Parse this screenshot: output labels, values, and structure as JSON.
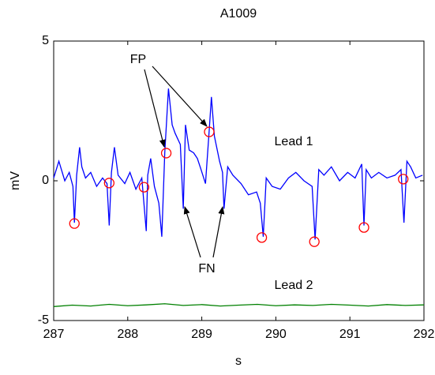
{
  "chart_data": {
    "type": "line",
    "title": "A1009",
    "x_label": "s",
    "y_label": "mV",
    "xlim": [
      287,
      292
    ],
    "xticks": [
      287,
      288,
      289,
      290,
      291,
      292
    ],
    "ylim": [
      -5,
      5
    ],
    "yticks": [
      -5,
      0,
      5
    ],
    "series": [
      {
        "name": "Lead 1",
        "color": "#0000ff",
        "x": [
          287.0,
          287.07,
          287.15,
          287.21,
          287.26,
          287.28,
          287.31,
          287.35,
          287.38,
          287.43,
          287.5,
          287.58,
          287.66,
          287.72,
          287.75,
          287.78,
          287.82,
          287.87,
          287.96,
          288.03,
          288.11,
          288.19,
          288.25,
          288.27,
          288.31,
          288.36,
          288.42,
          288.46,
          288.5,
          288.55,
          288.6,
          288.64,
          288.71,
          288.75,
          288.78,
          288.83,
          288.89,
          288.94,
          288.99,
          289.05,
          289.1,
          289.13,
          289.17,
          289.24,
          289.28,
          289.3,
          289.35,
          289.42,
          289.53,
          289.63,
          289.74,
          289.79,
          289.83,
          289.87,
          289.95,
          290.06,
          290.17,
          290.27,
          290.38,
          290.49,
          290.53,
          290.58,
          290.65,
          290.75,
          290.86,
          290.97,
          291.07,
          291.16,
          291.19,
          291.22,
          291.29,
          291.39,
          291.5,
          291.61,
          291.69,
          291.73,
          291.77,
          291.82,
          291.89,
          291.98
        ],
        "values": [
          0.1,
          0.7,
          0.0,
          0.3,
          -0.2,
          -1.5,
          0.2,
          1.2,
          0.5,
          0.1,
          0.3,
          -0.2,
          0.1,
          -0.1,
          -1.6,
          0.3,
          1.2,
          0.2,
          -0.1,
          0.3,
          -0.3,
          0.1,
          -1.8,
          0.2,
          0.8,
          -0.2,
          -0.8,
          -2.0,
          1.0,
          3.3,
          2.0,
          1.7,
          1.3,
          -1.0,
          2.0,
          1.1,
          1.0,
          0.8,
          0.4,
          -0.1,
          1.8,
          3.0,
          1.6,
          0.7,
          0.3,
          -1.0,
          0.5,
          0.2,
          -0.1,
          -0.5,
          -0.4,
          -0.8,
          -2.0,
          0.1,
          -0.2,
          -0.3,
          0.1,
          0.3,
          0.0,
          -0.2,
          -2.1,
          0.4,
          0.2,
          0.5,
          0.0,
          0.3,
          0.1,
          0.6,
          -1.6,
          0.4,
          0.1,
          0.3,
          0.1,
          0.2,
          0.4,
          -1.5,
          0.7,
          0.5,
          0.1,
          0.2
        ]
      },
      {
        "name": "Lead 2",
        "color": "#008000",
        "x": [
          287.0,
          287.25,
          287.5,
          287.75,
          288.0,
          288.25,
          288.5,
          288.75,
          289.0,
          289.25,
          289.5,
          289.75,
          290.0,
          290.25,
          290.5,
          290.75,
          291.0,
          291.25,
          291.5,
          291.75,
          292.0
        ],
        "values": [
          -4.5,
          -4.45,
          -4.48,
          -4.42,
          -4.47,
          -4.44,
          -4.4,
          -4.46,
          -4.43,
          -4.48,
          -4.45,
          -4.42,
          -4.47,
          -4.44,
          -4.46,
          -4.42,
          -4.45,
          -4.48,
          -4.43,
          -4.46,
          -4.44
        ]
      }
    ],
    "markers": {
      "color": "#ff0000",
      "x": [
        287.28,
        287.75,
        288.22,
        288.52,
        289.1,
        289.81,
        290.52,
        291.19,
        291.72
      ],
      "values": [
        -1.53,
        -0.08,
        -0.23,
        0.99,
        1.75,
        -2.03,
        -2.18,
        -1.67,
        0.06
      ]
    },
    "annotations": [
      "FP",
      "FN"
    ]
  }
}
